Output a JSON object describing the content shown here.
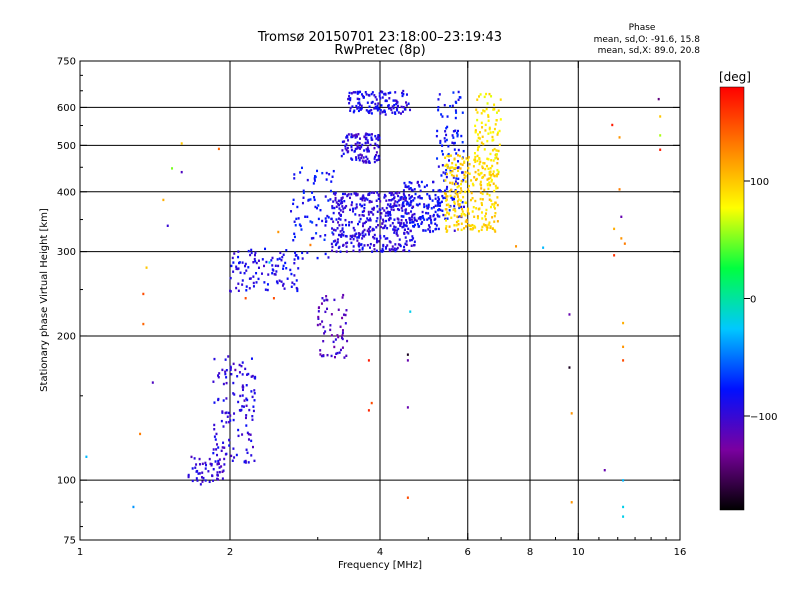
{
  "chart_data": {
    "type": "scatter",
    "title": "Tromsø 20150701 23:18:00–23:19:43",
    "subtitle": "RwPretec (8p)",
    "xlabel": "Frequency [MHz]",
    "ylabel": "Stationary phase Virtual Height [km]",
    "x_scale": "log",
    "y_scale": "log",
    "xlim": [
      1,
      16
    ],
    "ylim": [
      75,
      750
    ],
    "x_ticks": [
      1,
      2,
      4,
      6,
      8,
      10,
      16
    ],
    "y_ticks": [
      75,
      100,
      200,
      300,
      400,
      500,
      600,
      750
    ],
    "x_grid": [
      2,
      4,
      6,
      8,
      10
    ],
    "y_grid": [
      100,
      200,
      300,
      400,
      500,
      600
    ],
    "grid": true,
    "stats": {
      "heading": "Phase",
      "line1": "mean, sd,O: -91.6, 15.8",
      "line2": "mean, sd,X:  89.0, 20.8"
    },
    "colorbar": {
      "label": "[deg]",
      "ticks": [
        {
          "label": "100",
          "value": 100
        },
        {
          "label": "0",
          "value": 0
        },
        {
          "label": "−100",
          "value": -100
        }
      ],
      "range": [
        -180,
        180
      ],
      "colors": [
        "#000000",
        "#7a00a0",
        "#0010ff",
        "#00c8ff",
        "#00ff40",
        "#ffff00",
        "#ff8000",
        "#ff0000"
      ]
    },
    "clusters": [
      {
        "x": [
          1.65,
          1.95
        ],
        "y": [
          98,
          113
        ],
        "n": 55,
        "phase": -100
      },
      {
        "x": [
          1.85,
          2.25
        ],
        "y": [
          108,
          183
        ],
        "n": 130,
        "phase": -95
      },
      {
        "x": [
          2.0,
          2.8
        ],
        "y": [
          248,
          305
        ],
        "n": 110,
        "phase": -90
      },
      {
        "x": [
          2.65,
          3.25
        ],
        "y": [
          290,
          450
        ],
        "n": 80,
        "phase": -80
      },
      {
        "x": [
          3.0,
          3.45
        ],
        "y": [
          180,
          245
        ],
        "n": 60,
        "phase": -110
      },
      {
        "x": [
          3.2,
          4.7
        ],
        "y": [
          300,
          400
        ],
        "n": 420,
        "phase": -95
      },
      {
        "x": [
          3.35,
          4.0
        ],
        "y": [
          460,
          530
        ],
        "n": 110,
        "phase": -95
      },
      {
        "x": [
          3.45,
          4.6
        ],
        "y": [
          580,
          650
        ],
        "n": 130,
        "phase": -90
      },
      {
        "x": [
          4.4,
          5.3
        ],
        "y": [
          330,
          420
        ],
        "n": 140,
        "phase": -85
      },
      {
        "x": [
          5.2,
          5.9
        ],
        "y": [
          350,
          650
        ],
        "n": 120,
        "phase": -80
      },
      {
        "x": [
          5.4,
          6.9
        ],
        "y": [
          330,
          480
        ],
        "n": 260,
        "phase": 95
      },
      {
        "x": [
          6.2,
          7.0
        ],
        "y": [
          430,
          650
        ],
        "n": 90,
        "phase": 85
      }
    ],
    "points": [
      {
        "x": 1.03,
        "y": 112,
        "phase": -30
      },
      {
        "x": 1.28,
        "y": 88,
        "phase": -40
      },
      {
        "x": 1.32,
        "y": 125,
        "phase": 130
      },
      {
        "x": 1.34,
        "y": 245,
        "phase": 150
      },
      {
        "x": 1.34,
        "y": 212,
        "phase": 140
      },
      {
        "x": 1.36,
        "y": 278,
        "phase": 100
      },
      {
        "x": 1.4,
        "y": 160,
        "phase": -110
      },
      {
        "x": 1.47,
        "y": 385,
        "phase": 110
      },
      {
        "x": 1.5,
        "y": 340,
        "phase": -100
      },
      {
        "x": 1.53,
        "y": 448,
        "phase": 50
      },
      {
        "x": 1.6,
        "y": 505,
        "phase": 100
      },
      {
        "x": 1.6,
        "y": 440,
        "phase": -110
      },
      {
        "x": 1.9,
        "y": 492,
        "phase": 140
      },
      {
        "x": 2.05,
        "y": 170,
        "phase": -120
      },
      {
        "x": 2.15,
        "y": 240,
        "phase": 150
      },
      {
        "x": 2.4,
        "y": 285,
        "phase": -20
      },
      {
        "x": 2.45,
        "y": 240,
        "phase": 150
      },
      {
        "x": 2.5,
        "y": 330,
        "phase": 120
      },
      {
        "x": 2.9,
        "y": 310,
        "phase": 130
      },
      {
        "x": 3.8,
        "y": 178,
        "phase": 170
      },
      {
        "x": 3.8,
        "y": 140,
        "phase": 165
      },
      {
        "x": 3.85,
        "y": 145,
        "phase": 150
      },
      {
        "x": 4.55,
        "y": 183,
        "phase": -170
      },
      {
        "x": 4.55,
        "y": 178,
        "phase": -120
      },
      {
        "x": 4.55,
        "y": 142,
        "phase": -120
      },
      {
        "x": 4.55,
        "y": 92,
        "phase": 150
      },
      {
        "x": 4.6,
        "y": 225,
        "phase": -20
      },
      {
        "x": 5.65,
        "y": 332,
        "phase": -100
      },
      {
        "x": 7.5,
        "y": 308,
        "phase": 120
      },
      {
        "x": 8.5,
        "y": 306,
        "phase": -30
      },
      {
        "x": 9.6,
        "y": 222,
        "phase": -120
      },
      {
        "x": 9.6,
        "y": 172,
        "phase": -170
      },
      {
        "x": 9.7,
        "y": 138,
        "phase": 120
      },
      {
        "x": 9.7,
        "y": 90,
        "phase": 120
      },
      {
        "x": 11.3,
        "y": 105,
        "phase": -120
      },
      {
        "x": 11.7,
        "y": 552,
        "phase": 170
      },
      {
        "x": 11.8,
        "y": 335,
        "phase": 110
      },
      {
        "x": 11.8,
        "y": 295,
        "phase": 160
      },
      {
        "x": 12.1,
        "y": 520,
        "phase": 120
      },
      {
        "x": 12.1,
        "y": 405,
        "phase": 130
      },
      {
        "x": 12.2,
        "y": 355,
        "phase": -120
      },
      {
        "x": 12.2,
        "y": 320,
        "phase": 120
      },
      {
        "x": 12.3,
        "y": 213,
        "phase": 110
      },
      {
        "x": 12.3,
        "y": 190,
        "phase": 120
      },
      {
        "x": 12.3,
        "y": 178,
        "phase": 150
      },
      {
        "x": 12.3,
        "y": 100,
        "phase": -30
      },
      {
        "x": 12.3,
        "y": 88,
        "phase": -20
      },
      {
        "x": 12.3,
        "y": 84,
        "phase": -20
      },
      {
        "x": 12.4,
        "y": 312,
        "phase": 130
      },
      {
        "x": 14.5,
        "y": 625,
        "phase": -140
      },
      {
        "x": 14.6,
        "y": 575,
        "phase": 100
      },
      {
        "x": 14.6,
        "y": 525,
        "phase": 60
      },
      {
        "x": 14.6,
        "y": 490,
        "phase": 170
      }
    ]
  }
}
